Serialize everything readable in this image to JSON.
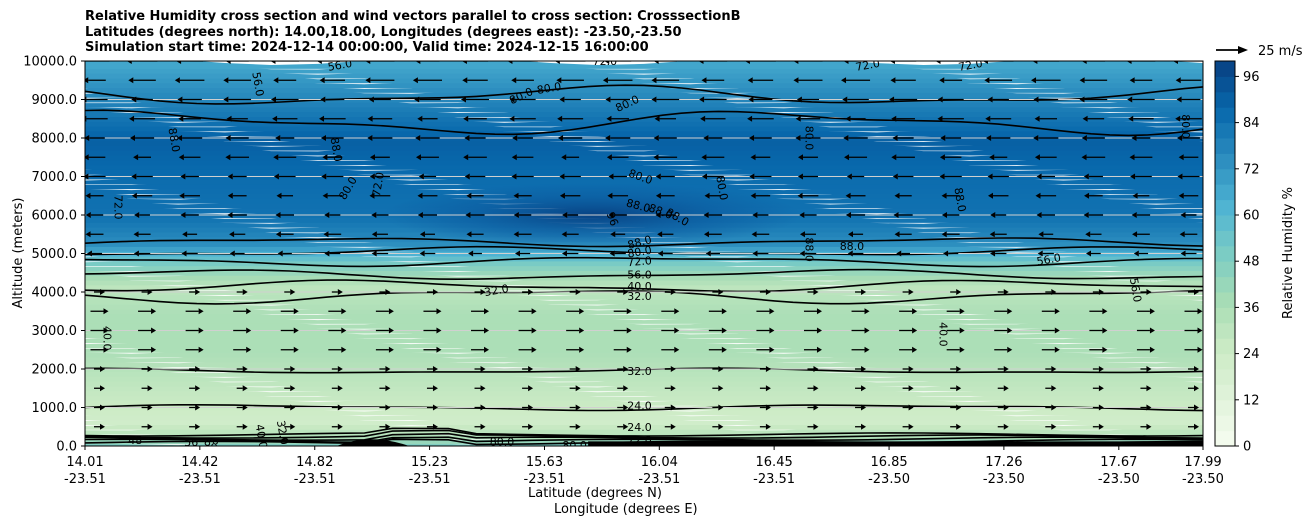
{
  "title_lines": [
    "Relative Humidity cross section and wind vectors parallel to cross section: CrosssectionB",
    "Latitudes (degrees north): 14.00,18.00, Longitudes (degrees east): -23.50,-23.50",
    "Simulation start time: 2024-12-14 00:00:00, Valid time: 2024-12-15 16:00:00"
  ],
  "chart_data": {
    "type": "heatmap",
    "title": "Relative Humidity cross section and wind vectors parallel to cross section: CrosssectionB",
    "xlabel": "Latitude (degrees N)",
    "xlabel2": "Longitude (degrees E)",
    "ylabel": "Altitude (meters)",
    "ylim": [
      0,
      10000
    ],
    "yticks": [
      "0.0",
      "1000.0",
      "2000.0",
      "3000.0",
      "4000.0",
      "5000.0",
      "6000.0",
      "7000.0",
      "8000.0",
      "9000.0",
      "10000.0"
    ],
    "xticks": [
      {
        "lat": "14.01",
        "lon": "-23.51"
      },
      {
        "lat": "14.42",
        "lon": "-23.51"
      },
      {
        "lat": "14.82",
        "lon": "-23.51"
      },
      {
        "lat": "15.23",
        "lon": "-23.51"
      },
      {
        "lat": "15.63",
        "lon": "-23.51"
      },
      {
        "lat": "16.04",
        "lon": "-23.51"
      },
      {
        "lat": "16.45",
        "lon": "-23.51"
      },
      {
        "lat": "16.85",
        "lon": "-23.50"
      },
      {
        "lat": "17.26",
        "lon": "-23.50"
      },
      {
        "lat": "17.67",
        "lon": "-23.50"
      },
      {
        "lat": "17.99",
        "lon": "-23.50"
      }
    ],
    "xtick_fracs": [
      0.0,
      0.1027,
      0.2055,
      0.3082,
      0.411,
      0.5137,
      0.6164,
      0.7192,
      0.8219,
      0.9247,
      1.0
    ],
    "colorbar": {
      "label": "Relative Humidity %",
      "min": 0,
      "max": 100,
      "ticks": [
        "0",
        "12",
        "24",
        "36",
        "48",
        "60",
        "72",
        "84",
        "96"
      ],
      "tick_values": [
        0,
        12,
        24,
        36,
        48,
        60,
        72,
        84,
        96
      ]
    },
    "quiver_key": "25 m/s",
    "rh_profile": [
      {
        "alt": 0,
        "rh": 55
      },
      {
        "alt": 300,
        "rh": 35
      },
      {
        "alt": 700,
        "rh": 22
      },
      {
        "alt": 1500,
        "rh": 28
      },
      {
        "alt": 2500,
        "rh": 36
      },
      {
        "alt": 3500,
        "rh": 36
      },
      {
        "alt": 4200,
        "rh": 30
      },
      {
        "alt": 4800,
        "rh": 50
      },
      {
        "alt": 5300,
        "rh": 74
      },
      {
        "alt": 6000,
        "rh": 84
      },
      {
        "alt": 7000,
        "rh": 86
      },
      {
        "alt": 8000,
        "rh": 90
      },
      {
        "alt": 9000,
        "rh": 78
      },
      {
        "alt": 10000,
        "rh": 66
      }
    ],
    "moist_core": {
      "x_frac": 0.4,
      "alt": 6000,
      "rh": 97
    },
    "contours": [
      {
        "level": "24.0",
        "alt": 1000,
        "amp": 60
      },
      {
        "level": "32.0",
        "alt": 1950,
        "amp": 50
      },
      {
        "level": "32.0",
        "alt": 3900,
        "amp": 150
      },
      {
        "level": "40.0",
        "alt": 4150,
        "amp": 120
      },
      {
        "level": "56.0",
        "alt": 4450,
        "amp": 100
      },
      {
        "level": "72.0",
        "alt": 4800,
        "amp": 100
      },
      {
        "level": "80.0",
        "alt": 5050,
        "amp": 90
      },
      {
        "level": "88.0",
        "alt": 5300,
        "amp": 90
      },
      {
        "level": "88.0",
        "alt": 8400,
        "amp": 250
      },
      {
        "level": "80.0",
        "alt": 9100,
        "amp": 200
      }
    ],
    "contour_labels": [
      {
        "text": "56.0",
        "x_frac": 0.155,
        "alt": 9400,
        "angle": 80
      },
      {
        "text": "56.0",
        "x_frac": 0.228,
        "alt": 9900,
        "angle": -10
      },
      {
        "text": "72.0",
        "x_frac": 0.465,
        "alt": 10000,
        "angle": 0
      },
      {
        "text": "72.0",
        "x_frac": 0.7,
        "alt": 9900,
        "angle": -10
      },
      {
        "text": "72.0",
        "x_frac": 0.792,
        "alt": 9900,
        "angle": -10
      },
      {
        "text": "80.0",
        "x_frac": 0.39,
        "alt": 9100,
        "angle": -25
      },
      {
        "text": "80.0",
        "x_frac": 0.415,
        "alt": 9300,
        "angle": -10
      },
      {
        "text": "80.0",
        "x_frac": 0.485,
        "alt": 8900,
        "angle": -25
      },
      {
        "text": "88.0",
        "x_frac": 0.08,
        "alt": 7950,
        "angle": 80
      },
      {
        "text": "88.0",
        "x_frac": 0.225,
        "alt": 7700,
        "angle": 80
      },
      {
        "text": "80.0",
        "x_frac": 0.235,
        "alt": 6700,
        "angle": -60
      },
      {
        "text": "72.0",
        "x_frac": 0.262,
        "alt": 6800,
        "angle": -80
      },
      {
        "text": "72.0",
        "x_frac": 0.03,
        "alt": 6200,
        "angle": 90
      },
      {
        "text": "80.0",
        "x_frac": 0.497,
        "alt": 7000,
        "angle": 20
      },
      {
        "text": "80.0",
        "x_frac": 0.57,
        "alt": 6700,
        "angle": 80
      },
      {
        "text": "88.0",
        "x_frac": 0.495,
        "alt": 6250,
        "angle": 15
      },
      {
        "text": "88.0",
        "x_frac": 0.515,
        "alt": 6100,
        "angle": 20
      },
      {
        "text": "88.0",
        "x_frac": 0.53,
        "alt": 5950,
        "angle": 30
      },
      {
        "text": "96",
        "x_frac": 0.472,
        "alt": 5900,
        "angle": 70
      },
      {
        "text": "80.0",
        "x_frac": 0.648,
        "alt": 8000,
        "angle": 90
      },
      {
        "text": "88.0",
        "x_frac": 0.783,
        "alt": 6400,
        "angle": 80
      },
      {
        "text": "80.0",
        "x_frac": 0.985,
        "alt": 8300,
        "angle": 90
      },
      {
        "text": "88.0",
        "x_frac": 0.496,
        "alt": 5300,
        "angle": -15
      },
      {
        "text": "80.0",
        "x_frac": 0.496,
        "alt": 5050,
        "angle": -10
      },
      {
        "text": "72.0",
        "x_frac": 0.496,
        "alt": 4800,
        "angle": -5
      },
      {
        "text": "56.0",
        "x_frac": 0.496,
        "alt": 4450,
        "angle": 0
      },
      {
        "text": "40.0",
        "x_frac": 0.496,
        "alt": 4150,
        "angle": 0
      },
      {
        "text": "32.0",
        "x_frac": 0.496,
        "alt": 3900,
        "angle": 0
      },
      {
        "text": "32.0",
        "x_frac": 0.368,
        "alt": 4050,
        "angle": -10
      },
      {
        "text": "88.0",
        "x_frac": 0.648,
        "alt": 5100,
        "angle": 90
      },
      {
        "text": "88.0",
        "x_frac": 0.686,
        "alt": 5200,
        "angle": 0
      },
      {
        "text": "56.0",
        "x_frac": 0.862,
        "alt": 4850,
        "angle": -10
      },
      {
        "text": "56.0",
        "x_frac": 0.94,
        "alt": 4050,
        "angle": 80
      },
      {
        "text": "40.0",
        "x_frac": 0.02,
        "alt": 2800,
        "angle": 90
      },
      {
        "text": "40.0",
        "x_frac": 0.768,
        "alt": 2900,
        "angle": 90
      },
      {
        "text": "32.0",
        "x_frac": 0.496,
        "alt": 1950,
        "angle": 0
      },
      {
        "text": "24.0",
        "x_frac": 0.496,
        "alt": 1050,
        "angle": 0
      },
      {
        "text": "24.0",
        "x_frac": 0.496,
        "alt": 500,
        "angle": 0
      },
      {
        "text": "40.0",
        "x_frac": 0.158,
        "alt": 250,
        "angle": 80
      },
      {
        "text": "32.0",
        "x_frac": 0.177,
        "alt": 350,
        "angle": 80
      },
      {
        "text": "80.0",
        "x_frac": 0.373,
        "alt": 120,
        "angle": 0
      },
      {
        "text": "80.0",
        "x_frac": 0.438,
        "alt": 30,
        "angle": 0
      },
      {
        "text": "72.0",
        "x_frac": 0.496,
        "alt": 150,
        "angle": 0
      },
      {
        "text": "56",
        "x_frac": 0.095,
        "alt": 100,
        "angle": 0
      },
      {
        "text": "88",
        "x_frac": 0.113,
        "alt": 80,
        "angle": 20
      },
      {
        "text": "48",
        "x_frac": 0.045,
        "alt": 150,
        "angle": 0
      }
    ],
    "wind_upper": {
      "from_alt": 4700,
      "to_alt": 10000,
      "direction": "left"
    },
    "wind_lower": {
      "from_alt": 0,
      "to_alt": 4400,
      "direction": "right"
    }
  }
}
